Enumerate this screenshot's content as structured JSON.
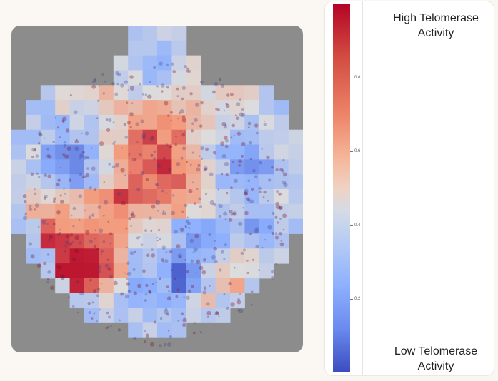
{
  "colorbar": {
    "ticks": [
      {
        "value": "0.8",
        "fraction": 0.8
      },
      {
        "value": "0.6",
        "fraction": 0.6
      },
      {
        "value": "0.4",
        "fraction": 0.4
      },
      {
        "value": "0.2",
        "fraction": 0.2
      }
    ],
    "gradient_top_color": "#b40426",
    "gradient_mid_color": "#dddcdc",
    "gradient_bottom_color": "#3b4cc0"
  },
  "legend": {
    "high_line1": "High Telomerase",
    "high_line2": "Activity",
    "low_line1": "Low Telomerase",
    "low_line2": "Activity"
  },
  "image": {
    "description_icon": "tissue-heatmap-icon"
  }
}
